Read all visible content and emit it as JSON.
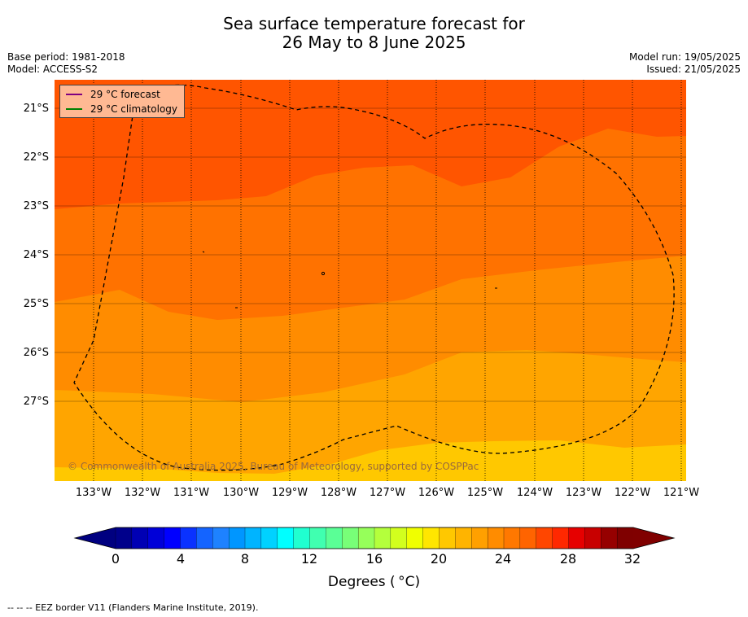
{
  "title_line1": "Sea surface temperature forecast for",
  "title_line2": "26 May to 8 June 2025",
  "meta": {
    "base_period": "Base period: 1981-2018",
    "model": "Model: ACCESS-S2",
    "model_run": "Model run: 19/05/2025",
    "issued": "Issued: 21/05/2025"
  },
  "legend": {
    "forecast_label": "29 °C  forecast",
    "forecast_color": "#800080",
    "climatology_label": "29 °C  climatology",
    "climatology_color": "#008000"
  },
  "lat_labels": [
    "21°S",
    "22°S",
    "23°S",
    "24°S",
    "25°S",
    "26°S",
    "27°S"
  ],
  "lon_labels": [
    "133°W",
    "132°W",
    "131°W",
    "130°W",
    "129°W",
    "128°W",
    "127°W",
    "126°W",
    "125°W",
    "124°W",
    "123°W",
    "122°W",
    "121°W"
  ],
  "zone_colors": [
    "#ff5500",
    "#ff7200",
    "#ff8c00",
    "#ffa500",
    "#ffc800"
  ],
  "copyright": "© Commonwealth of Australia 2025, Bureau of Meteorology, supported by COSPPac",
  "colorbar": {
    "title": "Degrees ( °C)",
    "ticks": [
      "0",
      "4",
      "8",
      "12",
      "16",
      "20",
      "24",
      "28",
      "32"
    ],
    "colors": [
      "#00008b",
      "#0000b4",
      "#0000d8",
      "#0000ff",
      "#0a32ff",
      "#1464ff",
      "#1e82ff",
      "#0096ff",
      "#00b4ff",
      "#00d2ff",
      "#00ffff",
      "#20ffd0",
      "#40ffb0",
      "#5aff96",
      "#78ff78",
      "#96ff5a",
      "#b4ff3c",
      "#d2ff1e",
      "#f0ff00",
      "#ffe600",
      "#ffc800",
      "#ffb400",
      "#ffa000",
      "#ff8c00",
      "#ff7800",
      "#ff6400",
      "#ff4600",
      "#ff2800",
      "#e60000",
      "#c80000",
      "#960000",
      "#7f0000"
    ],
    "under_color": "#000080",
    "over_color": "#800000"
  },
  "footer": "--  --  -- EEZ border V11 (Flanders Marine Institute, 2019)."
}
